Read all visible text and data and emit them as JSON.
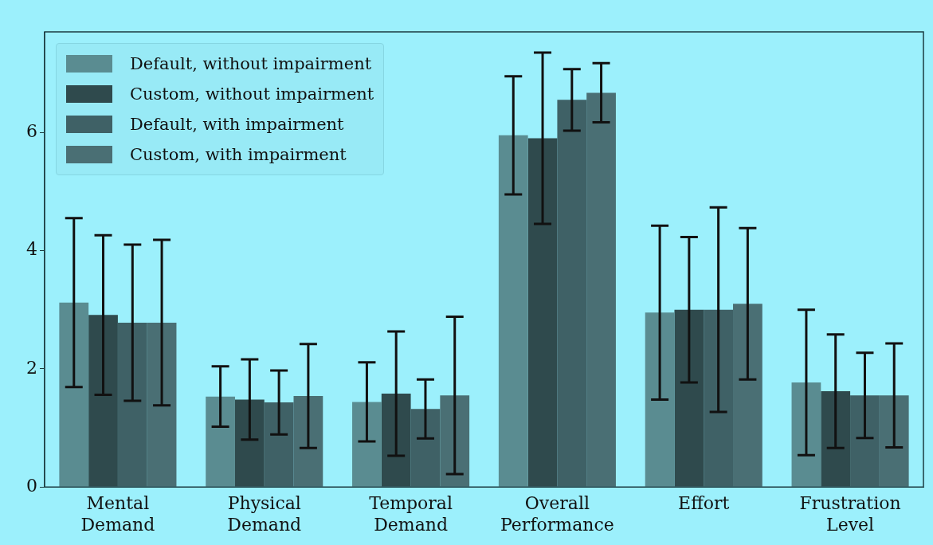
{
  "chart_data": {
    "type": "bar",
    "categories": [
      "Mental Demand",
      "Physical Demand",
      "Temporal Demand",
      "Overall Performance",
      "Effort",
      "Frustration Level"
    ],
    "series": [
      {
        "name": "Default, without impairment",
        "color": "#5a8c91",
        "values": [
          3.12,
          1.53,
          1.44,
          5.95,
          2.95,
          1.77
        ],
        "errors": [
          1.43,
          0.51,
          0.67,
          1.0,
          1.47,
          1.23
        ]
      },
      {
        "name": "Custom, without impairment",
        "color": "#2f4a4d",
        "values": [
          2.91,
          1.48,
          1.58,
          5.9,
          3.0,
          1.62
        ],
        "errors": [
          1.35,
          0.68,
          1.05,
          1.45,
          1.23,
          0.96
        ]
      },
      {
        "name": "Default, with impairment",
        "color": "#3f6166",
        "values": [
          2.78,
          1.43,
          1.32,
          6.55,
          3.0,
          1.55
        ],
        "errors": [
          1.32,
          0.54,
          0.5,
          0.52,
          1.73,
          0.72
        ]
      },
      {
        "name": "Custom, with impairment",
        "color": "#4a6f74",
        "values": [
          2.78,
          1.54,
          1.55,
          6.67,
          3.1,
          1.55
        ],
        "errors": [
          1.4,
          0.88,
          1.33,
          0.5,
          1.28,
          0.88
        ]
      }
    ],
    "ylim": [
      0,
      7.7
    ],
    "yticks": [
      0,
      2,
      4,
      6
    ],
    "grid": false,
    "legend": "top left"
  }
}
